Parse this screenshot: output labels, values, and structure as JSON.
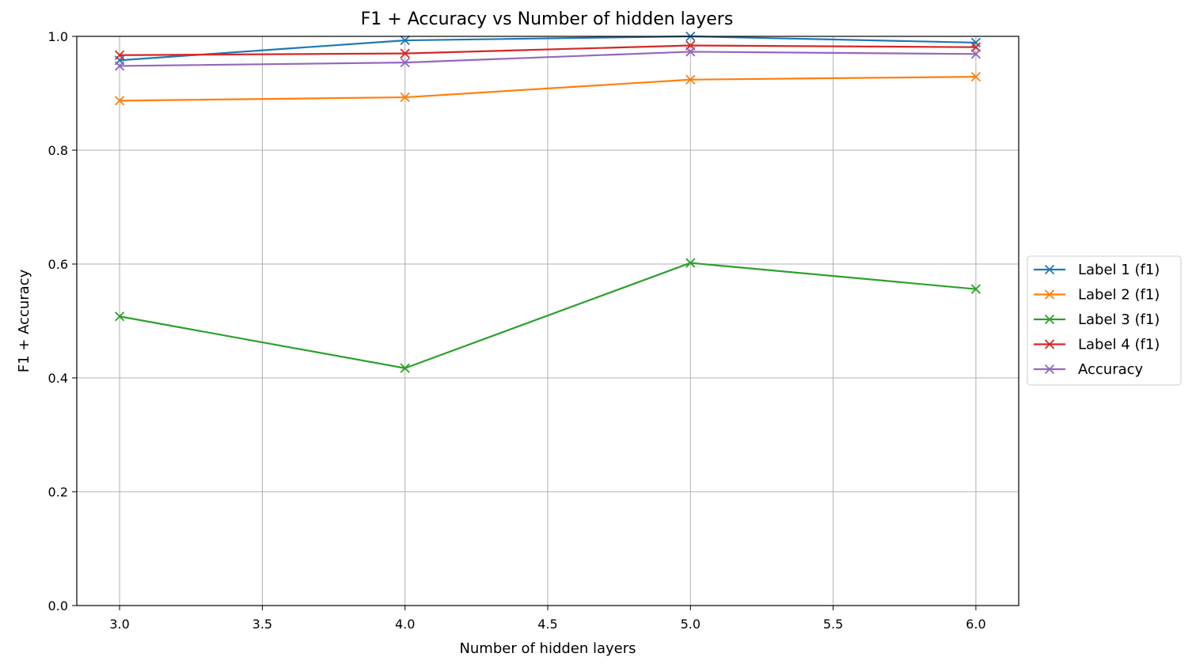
{
  "chart_data": {
    "type": "line",
    "title": "F1 + Accuracy vs Number of hidden layers",
    "xlabel": "Number of hidden layers",
    "ylabel": "F1 + Accuracy",
    "x": [
      3.0,
      4.0,
      5.0,
      6.0
    ],
    "xlim": [
      2.85,
      6.15
    ],
    "ylim": [
      0.0,
      1.0
    ],
    "xticks": [
      3.0,
      3.5,
      4.0,
      4.5,
      5.0,
      5.5,
      6.0
    ],
    "xtick_labels": [
      "3.0",
      "3.5",
      "4.0",
      "4.5",
      "5.0",
      "5.5",
      "6.0"
    ],
    "yticks": [
      0.0,
      0.2,
      0.4,
      0.6,
      0.8,
      1.0
    ],
    "ytick_labels": [
      "0.0",
      "0.2",
      "0.4",
      "0.6",
      "0.8",
      "1.0"
    ],
    "grid": true,
    "legend_position": "right, outside plot area",
    "marker": "x",
    "series": [
      {
        "name": "Label 1 (f1)",
        "color": "#1f77b4",
        "values": [
          0.958,
          0.993,
          1.0,
          0.989
        ]
      },
      {
        "name": "Label 2 (f1)",
        "color": "#ff7f0e",
        "values": [
          0.887,
          0.893,
          0.924,
          0.929
        ]
      },
      {
        "name": "Label 3 (f1)",
        "color": "#2ca02c",
        "values": [
          0.508,
          0.417,
          0.602,
          0.556
        ]
      },
      {
        "name": "Label 4 (f1)",
        "color": "#d62728",
        "values": [
          0.967,
          0.97,
          0.984,
          0.981
        ]
      },
      {
        "name": "Accuracy",
        "color": "#9467bd",
        "values": [
          0.948,
          0.954,
          0.973,
          0.969
        ]
      }
    ]
  }
}
